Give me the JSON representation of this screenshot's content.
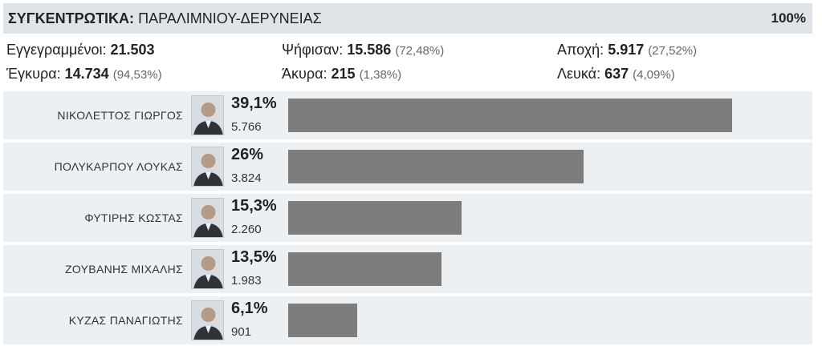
{
  "header": {
    "title_strong": "ΣΥΓΚΕΝΤΡΩΤΙΚΑ:",
    "title_rest": "ΠΑΡΑΛΙΜΝΙΟΥ-ΔΕΡΥΝΕΙΑΣ",
    "counted": "100%"
  },
  "stats": {
    "registered_label": "Εγγεγραμμένοι:",
    "registered_value": "21.503",
    "voted_label": "Ψήφισαν:",
    "voted_value": "15.586",
    "voted_pct": "(72,48%)",
    "abstention_label": "Αποχή:",
    "abstention_value": "5.917",
    "abstention_pct": "(27,52%)",
    "valid_label": "Έγκυρα:",
    "valid_value": "14.734",
    "valid_pct": "(94,53%)",
    "invalid_label": "Άκυρα:",
    "invalid_value": "215",
    "invalid_pct": "(1,38%)",
    "blank_label": "Λευκά:",
    "blank_value": "637",
    "blank_pct": "(4,09%)"
  },
  "colors": {
    "header_bg": "#dfe4e8",
    "row_bg": "#edf0f2",
    "bar": "#7c7c7c"
  },
  "chart_data": {
    "type": "bar",
    "orientation": "horizontal",
    "categories": [
      "ΝΙΚΟΛΕΤΤΟΣ ΓΙΩΡΓΟΣ",
      "ΠΟΛΥΚΑΡΠΟΥ ΛΟΥΚΑΣ",
      "ΦΥΤΙΡΗΣ ΚΩΣΤΑΣ",
      "ΖΟΥΒΑΝΗΣ ΜΙΧΑΛΗΣ",
      "ΚΥΖΑΣ ΠΑΝΑΓΙΩΤΗΣ"
    ],
    "values": [
      39.1,
      26,
      15.3,
      13.5,
      6.1
    ],
    "percent_labels": [
      "39,1%",
      "26%",
      "15,3%",
      "13,5%",
      "6,1%"
    ],
    "votes": [
      "5.766",
      "3.824",
      "2.260",
      "1.983",
      "901"
    ],
    "xlim": [
      0,
      39.1
    ],
    "grid": false
  }
}
